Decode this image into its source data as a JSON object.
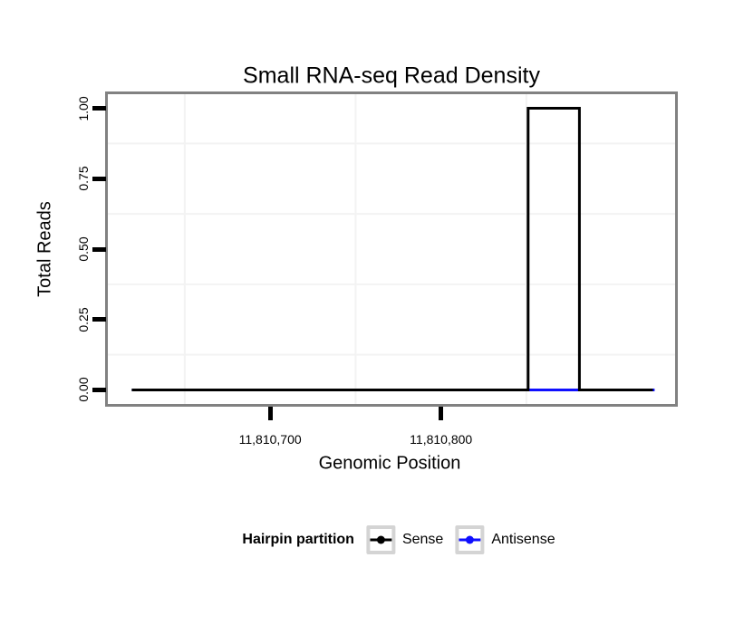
{
  "title": "Small RNA-seq Read Density",
  "colors": {
    "sense": "#000000",
    "antisense": "#0f0fff",
    "panel_border": "#818181",
    "gridline_minor": "#f3f3f3",
    "legend_key_border": "#d4d4d4",
    "background": "#ffffff",
    "text": "#000000"
  },
  "chart_data": {
    "type": "line",
    "subtype": "step-density",
    "title": "Small RNA-seq Read Density",
    "xlabel": "Genomic Position",
    "ylabel": "Total Reads",
    "xlim": [
      11810605,
      11810937
    ],
    "ylim": [
      -0.05,
      1.05
    ],
    "grid": "minor-only",
    "x_ticks": [
      {
        "value": 11810700,
        "label": "11,810,700"
      },
      {
        "value": 11810800,
        "label": "11,810,800"
      }
    ],
    "y_ticks": [
      {
        "value": 0.0,
        "label": "0.00"
      },
      {
        "value": 0.25,
        "label": "0.25"
      },
      {
        "value": 0.5,
        "label": "0.50"
      },
      {
        "value": 0.75,
        "label": "0.75"
      },
      {
        "value": 1.0,
        "label": "1.00"
      }
    ],
    "x_minor_gridlines": [
      11810650,
      11810750,
      11810850
    ],
    "y_minor_gridlines": [
      0.125,
      0.375,
      0.625,
      0.875
    ],
    "series": [
      {
        "name": "Antisense",
        "color": "#0f0fff",
        "points": [
          [
            11810619,
            0
          ],
          [
            11810925,
            0
          ]
        ]
      },
      {
        "name": "Sense",
        "color": "#000000",
        "points": [
          [
            11810619,
            0
          ],
          [
            11810851,
            0
          ],
          [
            11810851,
            1
          ],
          [
            11810881,
            1
          ],
          [
            11810881,
            0
          ],
          [
            11810924,
            0
          ]
        ]
      }
    ],
    "legend_title": "Hairpin partition",
    "legend_position": "bottom",
    "legend": [
      {
        "label": "Sense",
        "color": "#000000"
      },
      {
        "label": "Antisense",
        "color": "#0f0fff"
      }
    ]
  }
}
